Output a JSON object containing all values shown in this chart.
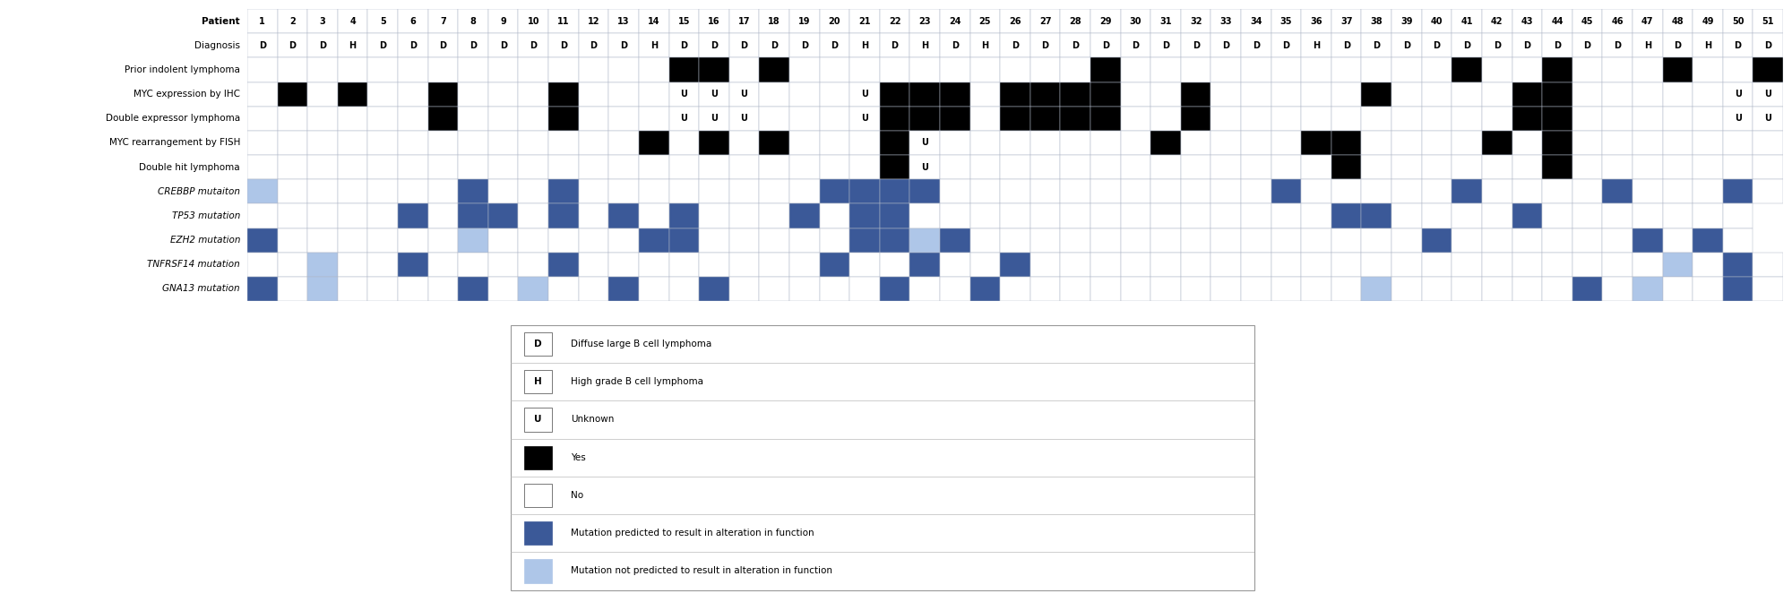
{
  "patients": [
    1,
    2,
    3,
    4,
    5,
    6,
    7,
    8,
    9,
    10,
    11,
    12,
    13,
    14,
    15,
    16,
    17,
    18,
    19,
    20,
    21,
    22,
    23,
    24,
    25,
    26,
    27,
    28,
    29,
    30,
    31,
    32,
    33,
    34,
    35,
    36,
    37,
    38,
    39,
    40,
    41,
    42,
    43,
    44,
    45,
    46,
    47,
    48,
    49,
    50,
    51
  ],
  "diagnosis": [
    "D",
    "D",
    "D",
    "H",
    "D",
    "D",
    "D",
    "D",
    "D",
    "D",
    "D",
    "D",
    "D",
    "H",
    "D",
    "D",
    "D",
    "D",
    "D",
    "D",
    "H",
    "D",
    "H",
    "D",
    "H",
    "D",
    "D",
    "D",
    "D",
    "D",
    "D",
    "D",
    "D",
    "D",
    "D",
    "H",
    "D",
    "D",
    "D",
    "D",
    "D",
    "D",
    "D",
    "D",
    "D",
    "D",
    "H",
    "D",
    "H",
    "D",
    "D"
  ],
  "prior_indolent": [
    0,
    0,
    0,
    0,
    0,
    0,
    0,
    0,
    0,
    0,
    0,
    0,
    0,
    0,
    1,
    1,
    0,
    1,
    0,
    0,
    0,
    0,
    0,
    0,
    0,
    0,
    0,
    0,
    1,
    0,
    0,
    0,
    0,
    0,
    0,
    0,
    0,
    0,
    0,
    0,
    1,
    0,
    0,
    1,
    0,
    0,
    0,
    1,
    0,
    0,
    1
  ],
  "myc_ihc": [
    "",
    "Y",
    "",
    "Y",
    "",
    "",
    "Y",
    "",
    "",
    "",
    "Y",
    "",
    "",
    "",
    "U",
    "U",
    "U",
    "",
    "",
    "",
    "U",
    "Y",
    "Y",
    "Y",
    "",
    "Y",
    "Y",
    "Y",
    "Y",
    "",
    "",
    "Y",
    "",
    "",
    "",
    "",
    "",
    "Y",
    "",
    "",
    "",
    "",
    "Y",
    "Y",
    "",
    "",
    "",
    "",
    "",
    "U",
    "U"
  ],
  "double_expressor": [
    "",
    "",
    "",
    "",
    "",
    "",
    "Y",
    "",
    "",
    "",
    "Y",
    "",
    "",
    "",
    "U",
    "U",
    "U",
    "",
    "",
    "",
    "U",
    "Y",
    "Y",
    "Y",
    "",
    "Y",
    "Y",
    "Y",
    "Y",
    "",
    "",
    "Y",
    "",
    "",
    "",
    "",
    "",
    "",
    "",
    "",
    "",
    "",
    "Y",
    "Y",
    "",
    "",
    "",
    "",
    "",
    "U",
    "U"
  ],
  "myc_fish": [
    "",
    "",
    "",
    "",
    "",
    "",
    "",
    "",
    "",
    "",
    "",
    "",
    "",
    "Y",
    "",
    "Y",
    "",
    "Y",
    "",
    "",
    "",
    "Y",
    "U",
    "",
    "",
    "",
    "",
    "",
    "",
    "",
    "Y",
    "",
    "",
    "",
    "",
    "Y",
    "Y",
    "",
    "",
    "",
    "",
    "Y",
    "",
    "Y",
    "",
    "",
    "",
    "",
    "",
    "",
    ""
  ],
  "double_hit": [
    "",
    "",
    "",
    "",
    "",
    "",
    "",
    "",
    "",
    "",
    "",
    "",
    "",
    "",
    "",
    "",
    "",
    "",
    "",
    "",
    "",
    "Y",
    "U",
    "",
    "",
    "",
    "",
    "",
    "",
    "",
    "",
    "",
    "",
    "",
    "",
    "",
    "Y",
    "",
    "",
    "",
    "",
    "",
    "",
    "Y",
    "",
    "",
    "",
    "",
    "",
    "",
    ""
  ],
  "crebbp": [
    "L",
    "",
    "",
    "",
    "",
    "",
    "",
    "D",
    "",
    "",
    "D",
    "",
    "",
    "",
    "",
    "",
    "",
    "",
    "",
    "D",
    "D",
    "D",
    "D",
    "",
    "",
    "",
    "",
    "",
    "",
    "",
    "",
    "",
    "",
    "",
    "D",
    "",
    "",
    "",
    "",
    "",
    "D",
    "",
    "",
    "",
    "",
    "D",
    "",
    "",
    "",
    "D",
    ""
  ],
  "tp53": [
    "",
    "",
    "",
    "",
    "",
    "D",
    "",
    "D",
    "D",
    "",
    "D",
    "",
    "D",
    "",
    "D",
    "",
    "",
    "",
    "D",
    "",
    "D",
    "D",
    "",
    "",
    "",
    "",
    "",
    "",
    "",
    "",
    "",
    "",
    "",
    "",
    "",
    "",
    "D",
    "D",
    "",
    "",
    "",
    "",
    "D",
    "",
    "",
    "",
    "",
    "",
    "",
    ""
  ],
  "ezh2": [
    "D",
    "",
    "",
    "",
    "",
    "",
    "",
    "L",
    "",
    "",
    "",
    "",
    "",
    "D",
    "D",
    "",
    "",
    "",
    "",
    "",
    "D",
    "D",
    "L",
    "D",
    "",
    "",
    "",
    "",
    "",
    "",
    "",
    "",
    "",
    "",
    "",
    "",
    "",
    "",
    "",
    "D",
    "",
    "",
    "",
    "",
    "",
    "",
    "D",
    "",
    "D",
    ""
  ],
  "tnfrsf14": [
    "",
    "",
    "L",
    "",
    "",
    "D",
    "",
    "",
    "",
    "",
    "D",
    "",
    "",
    "",
    "",
    "",
    "",
    "",
    "",
    "D",
    "",
    "",
    "D",
    "",
    "",
    "D",
    "",
    "",
    "",
    "",
    "",
    "",
    "",
    "",
    "",
    "",
    "",
    "",
    "",
    "",
    "",
    "",
    "",
    "",
    "",
    "",
    "",
    "L",
    "",
    "D",
    ""
  ],
  "gna13": [
    "D",
    "",
    "L",
    "",
    "",
    "",
    "",
    "D",
    "",
    "L",
    "",
    "",
    "D",
    "",
    "",
    "D",
    "",
    "",
    "",
    "",
    "",
    "D",
    "",
    "",
    "D",
    "",
    "",
    "",
    "",
    "",
    "",
    "",
    "",
    "",
    "",
    "",
    "",
    "L",
    "",
    "",
    "",
    "",
    "",
    "",
    "D",
    "",
    "L",
    "",
    "",
    "D",
    ""
  ],
  "colors": {
    "black": "#000000",
    "dark_blue": "#3b5998",
    "light_blue": "#aec6e8",
    "white": "#ffffff",
    "grid": "#b0b8c8",
    "bg": "#ffffff"
  },
  "row_labels": [
    "Patient",
    "Diagnosis",
    "Prior indolent lymphoma",
    "MYC expression by IHC",
    "Double expressor lymphoma",
    "MYC rearrangement by FISH",
    "Double hit lymphoma",
    "CREBBP mutaiton",
    "TP53 mutation",
    "EZH2 mutation",
    "TNFRSF14 mutation",
    "GNA13 mutation"
  ],
  "legend_items": [
    {
      "symbol": "D",
      "desc": "Diffuse large B cell lymphoma",
      "fill": "white"
    },
    {
      "symbol": "H",
      "desc": "High grade B cell lymphoma",
      "fill": "white"
    },
    {
      "symbol": "U",
      "desc": "Unknown",
      "fill": "white"
    },
    {
      "symbol": "",
      "desc": "Yes",
      "fill": "black"
    },
    {
      "symbol": "",
      "desc": "No",
      "fill": "white"
    },
    {
      "symbol": "",
      "desc": "Mutation predicted to result in alteration in function",
      "fill": "dark_blue"
    },
    {
      "symbol": "",
      "desc": "Mutation not predicted to result in alteration in function",
      "fill": "light_blue"
    }
  ]
}
